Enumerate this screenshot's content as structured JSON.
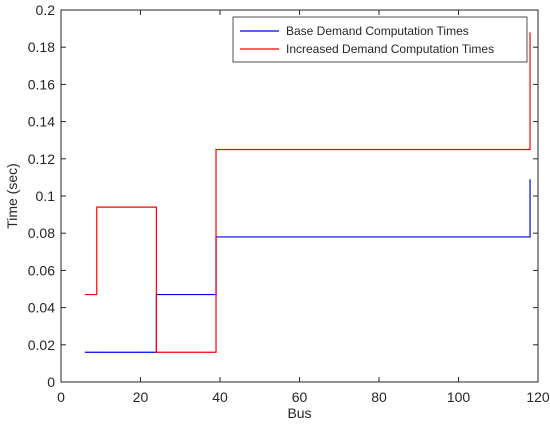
{
  "chart_data": {
    "type": "line",
    "title": "",
    "xlabel": "Bus",
    "ylabel": "Time (sec)",
    "xlim": [
      0,
      120
    ],
    "ylim": [
      0,
      0.2
    ],
    "x_ticks": [
      0,
      20,
      40,
      60,
      80,
      100,
      120
    ],
    "y_ticks": [
      0,
      0.02,
      0.04,
      0.06,
      0.08,
      0.1,
      0.12,
      0.14,
      0.16,
      0.18,
      0.2
    ],
    "x_tick_labels": [
      "0",
      "20",
      "40",
      "60",
      "80",
      "100",
      "120"
    ],
    "y_tick_labels": [
      "0",
      "0.02",
      "0.04",
      "0.06",
      "0.08",
      "0.1",
      "0.12",
      "0.14",
      "0.16",
      "0.18",
      "0.2"
    ],
    "grid": false,
    "legend_position": "top-right",
    "series": [
      {
        "name": "Base Demand Computation Times",
        "color": "#0000ff",
        "x": [
          6,
          24,
          24,
          39,
          39,
          118,
          118
        ],
        "y": [
          0.016,
          0.016,
          0.047,
          0.047,
          0.078,
          0.078,
          0.109
        ]
      },
      {
        "name": "Increased Demand Computation Times",
        "color": "#ff0000",
        "x": [
          6,
          9,
          9,
          24,
          24,
          39,
          39,
          118,
          118
        ],
        "y": [
          0.047,
          0.047,
          0.094,
          0.094,
          0.016,
          0.016,
          0.125,
          0.125,
          0.188
        ]
      }
    ]
  }
}
